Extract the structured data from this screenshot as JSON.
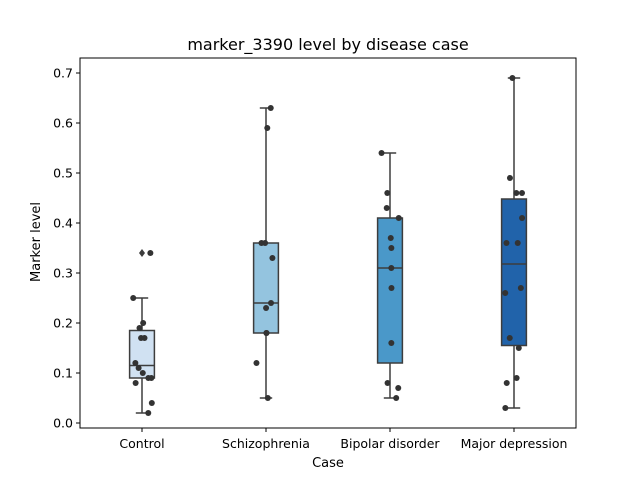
{
  "chart_data": {
    "type": "box",
    "title": "marker_3390 level by disease case",
    "xlabel": "Case",
    "ylabel": "Marker level",
    "ylim": [
      -0.01,
      0.73
    ],
    "yticks": [
      0.0,
      0.1,
      0.2,
      0.3,
      0.4,
      0.5,
      0.6,
      0.7
    ],
    "ytick_labels": [
      "0.0",
      "0.1",
      "0.2",
      "0.3",
      "0.4",
      "0.5",
      "0.6",
      "0.7"
    ],
    "categories": [
      "Control",
      "Schizophrenia",
      "Bipolar disorder",
      "Major depression"
    ],
    "box_colors": [
      "#d0e1f2",
      "#94c4df",
      "#4a98c9",
      "#2163aa"
    ],
    "point_color": "#333333",
    "boxes": [
      {
        "category": "Control",
        "q1": 0.09,
        "median": 0.115,
        "q3": 0.185,
        "whisker_low": 0.02,
        "whisker_high": 0.25,
        "outliers": [
          0.34
        ]
      },
      {
        "category": "Schizophrenia",
        "q1": 0.18,
        "median": 0.24,
        "q3": 0.36,
        "whisker_low": 0.05,
        "whisker_high": 0.63,
        "outliers": []
      },
      {
        "category": "Bipolar disorder",
        "q1": 0.12,
        "median": 0.31,
        "q3": 0.41,
        "whisker_low": 0.05,
        "whisker_high": 0.54,
        "outliers": []
      },
      {
        "category": "Major depression",
        "q1": 0.155,
        "median": 0.318,
        "q3": 0.448,
        "whisker_low": 0.03,
        "whisker_high": 0.69,
        "outliers": []
      }
    ],
    "points": [
      [
        0.34,
        0.25,
        0.2,
        0.19,
        0.17,
        0.17,
        0.12,
        0.11,
        0.1,
        0.09,
        0.09,
        0.08,
        0.04,
        0.02
      ],
      [
        0.63,
        0.59,
        0.36,
        0.36,
        0.33,
        0.24,
        0.23,
        0.18,
        0.18,
        0.12,
        0.05
      ],
      [
        0.54,
        0.46,
        0.43,
        0.41,
        0.37,
        0.35,
        0.31,
        0.27,
        0.16,
        0.08,
        0.07,
        0.05
      ],
      [
        0.69,
        0.49,
        0.46,
        0.46,
        0.41,
        0.36,
        0.36,
        0.27,
        0.26,
        0.17,
        0.15,
        0.09,
        0.08,
        0.03
      ]
    ]
  }
}
